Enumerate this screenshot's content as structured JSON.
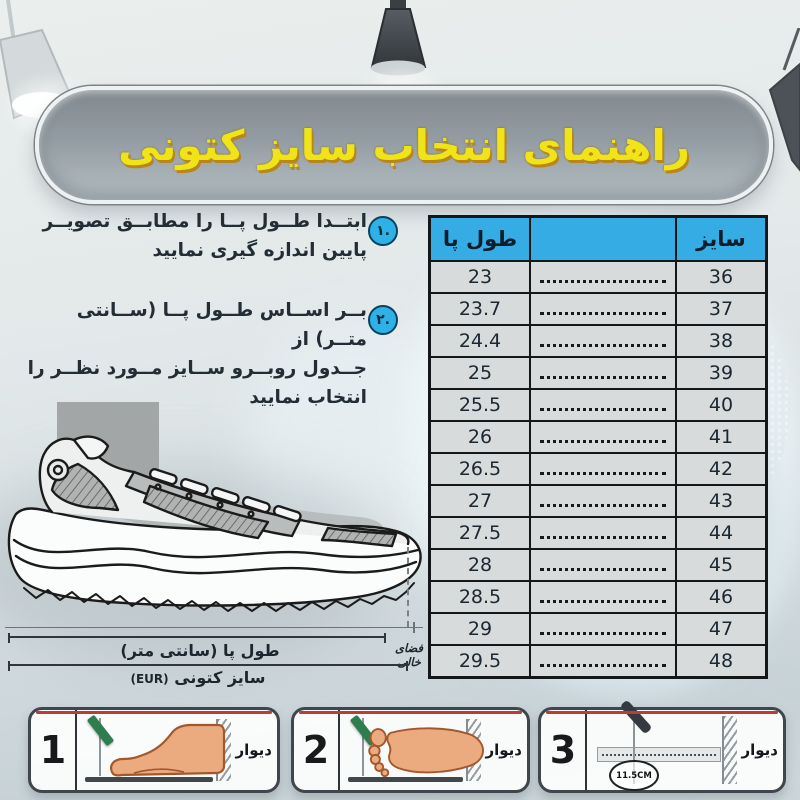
{
  "banner": {
    "title": "راهنمای انتخاب سایز کتونی"
  },
  "steps": [
    {
      "number": "١.",
      "lines": [
        "ابتــدا طــول پــا را مطابــق تصویــر",
        "پایین اندازه گیری نمایید"
      ]
    },
    {
      "number": "٢.",
      "lines": [
        "بــر اســاس طــول پــا (ســانتی متــر) از",
        "جــدول روبــرو ســایز مــورد نظــر را",
        "انتخاب نمایید"
      ]
    }
  ],
  "size_table": {
    "headers": {
      "foot_length": "طول پا",
      "size": "سایز"
    },
    "rows": [
      {
        "foot_length": "23",
        "size": "36"
      },
      {
        "foot_length": "23.7",
        "size": "37"
      },
      {
        "foot_length": "24.4",
        "size": "38"
      },
      {
        "foot_length": "25",
        "size": "39"
      },
      {
        "foot_length": "25.5",
        "size": "40"
      },
      {
        "foot_length": "26",
        "size": "41"
      },
      {
        "foot_length": "26.5",
        "size": "42"
      },
      {
        "foot_length": "27",
        "size": "43"
      },
      {
        "foot_length": "27.5",
        "size": "44"
      },
      {
        "foot_length": "28",
        "size": "45"
      },
      {
        "foot_length": "28.5",
        "size": "46"
      },
      {
        "foot_length": "29",
        "size": "47"
      },
      {
        "foot_length": "29.5",
        "size": "48"
      }
    ]
  },
  "measurements": {
    "foot_length_label": "طول پا (سانتی متر)",
    "empty_space_label": "فضای خالی",
    "size_label": "سایز کتونی",
    "size_unit": "(EUR)"
  },
  "instruction_boxes": [
    {
      "number": "1",
      "wall_label": "دیوار"
    },
    {
      "number": "2",
      "wall_label": "دیوار"
    },
    {
      "number": "3",
      "wall_label": "دیوار",
      "ruler_measure": "11.5CM"
    }
  ],
  "colors": {
    "accent_cyan": "#35ace4",
    "banner_fill": "#98a1a7",
    "banner_text": "#f0e419",
    "red_line": "#bc3b3b",
    "foot_skin": "#ecab7e",
    "pencil_green": "#2e7d4f"
  }
}
